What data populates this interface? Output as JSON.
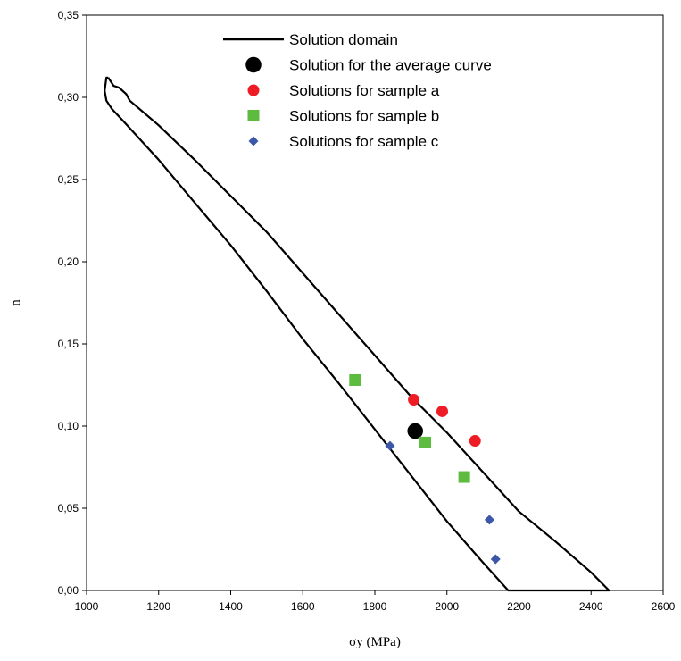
{
  "chart_data": {
    "type": "scatter",
    "xlabel": "σy (MPa)",
    "ylabel": "n",
    "xlim": [
      1000,
      2600
    ],
    "ylim": [
      0,
      0.35
    ],
    "x_ticks": [
      "1000",
      "1200",
      "1400",
      "1600",
      "1800",
      "2000",
      "2200",
      "2400",
      "2600"
    ],
    "y_ticks": [
      "0,00",
      "0,05",
      "0,10",
      "0,15",
      "0,20",
      "0,25",
      "0,30",
      "0,35"
    ],
    "grid": false,
    "legend_position": "top",
    "series": [
      {
        "name": "Solution domain",
        "kind": "line",
        "color": "#000000",
        "points": [
          [
            1060,
            0.312
          ],
          [
            1075,
            0.307
          ],
          [
            1090,
            0.306
          ],
          [
            1110,
            0.302
          ],
          [
            1120,
            0.298
          ],
          [
            1200,
            0.283
          ],
          [
            1300,
            0.262
          ],
          [
            1400,
            0.24
          ],
          [
            1500,
            0.218
          ],
          [
            1600,
            0.193
          ],
          [
            1700,
            0.168
          ],
          [
            1800,
            0.143
          ],
          [
            1900,
            0.118
          ],
          [
            2000,
            0.096
          ],
          [
            2100,
            0.072
          ],
          [
            2200,
            0.048
          ],
          [
            2300,
            0.03
          ],
          [
            2400,
            0.011
          ],
          [
            2450,
            0.0
          ],
          [
            2170,
            0.0
          ],
          [
            2100,
            0.017
          ],
          [
            2000,
            0.042
          ],
          [
            1900,
            0.07
          ],
          [
            1800,
            0.098
          ],
          [
            1700,
            0.126
          ],
          [
            1600,
            0.153
          ],
          [
            1500,
            0.182
          ],
          [
            1400,
            0.21
          ],
          [
            1300,
            0.236
          ],
          [
            1200,
            0.262
          ],
          [
            1100,
            0.286
          ],
          [
            1070,
            0.293
          ],
          [
            1055,
            0.298
          ],
          [
            1050,
            0.304
          ],
          [
            1055,
            0.312
          ],
          [
            1060,
            0.312
          ]
        ]
      },
      {
        "name": "Solution for the average curve",
        "marker": "circle",
        "color": "#000000",
        "points": [
          [
            1912,
            0.097
          ]
        ]
      },
      {
        "name": "Solutions for sample a",
        "marker": "circle",
        "color": "#ee1c25",
        "points": [
          [
            1908,
            0.116
          ],
          [
            1987,
            0.109
          ],
          [
            2078,
            0.091
          ]
        ]
      },
      {
        "name": "Solutions for sample b",
        "marker": "square",
        "color": "#5dbb3f",
        "points": [
          [
            1745,
            0.128
          ],
          [
            1940,
            0.09
          ],
          [
            2048,
            0.069
          ]
        ]
      },
      {
        "name": "Solutions for sample c",
        "marker": "diamond",
        "color": "#3d57a8",
        "points": [
          [
            1842,
            0.088
          ],
          [
            2118,
            0.043
          ],
          [
            2135,
            0.019
          ]
        ]
      }
    ]
  }
}
